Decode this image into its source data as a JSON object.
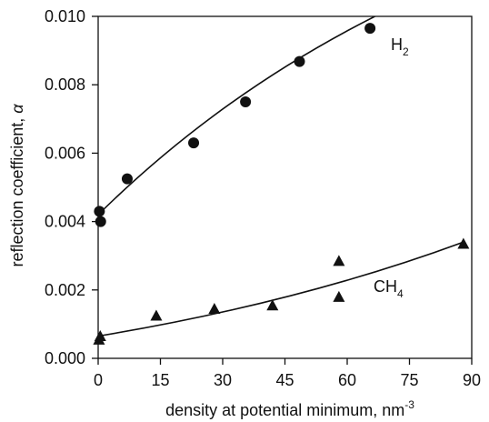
{
  "chart_data": {
    "type": "scatter",
    "xlabel": "density at potential minimum, nm",
    "xlabel_superscript": "-3",
    "ylabel": "reflection coefficient, ",
    "ylabel_symbol": "α",
    "xlim": [
      0,
      90
    ],
    "ylim": [
      0.0,
      0.01
    ],
    "x_ticks": [
      "0",
      "15",
      "30",
      "45",
      "60",
      "75",
      "90"
    ],
    "y_ticks": [
      "0.000",
      "0.002",
      "0.004",
      "0.006",
      "0.008",
      "0.010"
    ],
    "grid": false,
    "series": [
      {
        "label_main": "H",
        "label_sub": "2",
        "marker": "circle",
        "x": [
          0.3,
          0.6,
          7,
          23,
          35.5,
          48.5,
          65.5
        ],
        "y": [
          0.0043,
          0.004,
          0.00525,
          0.0063,
          0.0075,
          0.00868,
          0.00965
        ],
        "fit": {
          "x": [
            0,
            70
          ],
          "y": [
            0.0042,
            0.0102
          ]
        }
      },
      {
        "label_main": "CH",
        "label_sub": "4",
        "marker": "triangle",
        "x": [
          0.2,
          0.5,
          14,
          28,
          42,
          58,
          58,
          88
        ],
        "y": [
          0.00055,
          0.00065,
          0.00125,
          0.00145,
          0.00155,
          0.00285,
          0.0018,
          0.00335
        ],
        "fit": {
          "x": [
            0,
            88
          ],
          "y": [
            0.00065,
            0.0034
          ]
        }
      }
    ]
  }
}
